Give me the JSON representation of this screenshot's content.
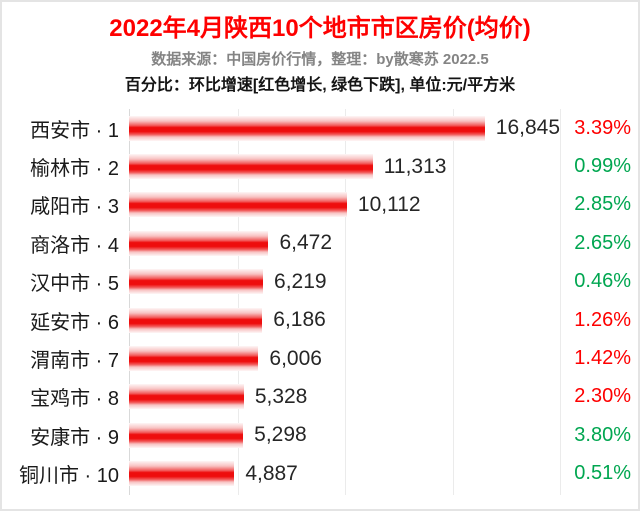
{
  "header": {
    "title": "2022年4月陕西10个地市市区房价(均价)",
    "subtitle": "数据来源：中国房价行情，整理：by散寒苏 2022.5",
    "note": "百分比：环比增速[红色增长, 绿色下跌], 单位:元/平方米"
  },
  "colors": {
    "title_red": "#fe0000",
    "bar_red_core": "#ee0d0d",
    "increase_red": "#fe0000",
    "decrease_green": "#00a650",
    "subtitle_gray": "#848484",
    "gridline": "#ebebeb",
    "axis": "#d9d9d9"
  },
  "chart_data": {
    "type": "bar",
    "orientation": "horizontal",
    "title": "2022年4月陕西10个地市市区房价(均价)",
    "xlabel": "",
    "ylabel": "",
    "unit": "元/平方米",
    "xlim": [
      0,
      20000
    ],
    "gridline_values": [
      5000,
      10000,
      15000,
      20000
    ],
    "legend_position": "none",
    "categories": [
      "西安市 · 1",
      "榆林市 · 2",
      "咸阳市 · 3",
      "商洛市 · 4",
      "汉中市 · 5",
      "延安市 · 6",
      "渭南市 · 7",
      "宝鸡市 · 8",
      "安康市 · 9",
      "铜川市 · 10"
    ],
    "values": [
      16845,
      11313,
      10112,
      6472,
      6219,
      6186,
      6006,
      5328,
      5298,
      4887
    ],
    "value_labels": [
      "16,845",
      "11,313",
      "10,112",
      "6,472",
      "6,219",
      "6,186",
      "6,006",
      "5,328",
      "5,298",
      "4,887"
    ],
    "changes": [
      {
        "label": "3.39%",
        "direction": "up"
      },
      {
        "label": "0.99%",
        "direction": "down"
      },
      {
        "label": "2.85%",
        "direction": "down"
      },
      {
        "label": "2.65%",
        "direction": "down"
      },
      {
        "label": "0.46%",
        "direction": "down"
      },
      {
        "label": "1.26%",
        "direction": "up"
      },
      {
        "label": "1.42%",
        "direction": "up"
      },
      {
        "label": "2.30%",
        "direction": "up"
      },
      {
        "label": "3.80%",
        "direction": "down"
      },
      {
        "label": "0.51%",
        "direction": "down"
      }
    ]
  }
}
